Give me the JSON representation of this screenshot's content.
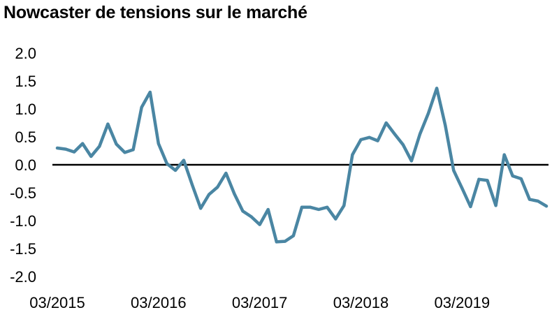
{
  "chart_data": {
    "type": "line",
    "title": "Nowcaster de tensions sur le marché",
    "xlabel": "",
    "ylabel": "",
    "ylim": [
      -2.0,
      2.0
    ],
    "y_ticks": [
      "2.0",
      "1.5",
      "1.0",
      "0.5",
      "0.0",
      "-0.5",
      "-1.0",
      "-1.5",
      "-2.0"
    ],
    "x_tick_labels": [
      "03/2015",
      "03/2016",
      "03/2017",
      "03/2018",
      "03/2019"
    ],
    "x_tick_index": [
      0,
      12,
      24,
      36,
      48
    ],
    "zero_line": true,
    "grid": false,
    "line_color": "#4a86a3",
    "series": [
      {
        "values": [
          0.3,
          0.28,
          0.23,
          0.38,
          0.15,
          0.33,
          0.73,
          0.37,
          0.22,
          0.27,
          1.03,
          1.3,
          0.38,
          0.02,
          -0.1,
          0.08,
          -0.36,
          -0.78,
          -0.53,
          -0.4,
          -0.15,
          -0.52,
          -0.83,
          -0.93,
          -1.07,
          -0.8,
          -1.38,
          -1.37,
          -1.27,
          -0.76,
          -0.76,
          -0.8,
          -0.76,
          -0.97,
          -0.73,
          0.18,
          0.45,
          0.49,
          0.43,
          0.75,
          0.55,
          0.36,
          0.07,
          0.55,
          0.92,
          1.37,
          0.71,
          -0.1,
          -0.42,
          -0.75,
          -0.26,
          -0.28,
          -0.73,
          0.18,
          -0.2,
          -0.25,
          -0.62,
          -0.65,
          -0.74
        ]
      }
    ]
  }
}
